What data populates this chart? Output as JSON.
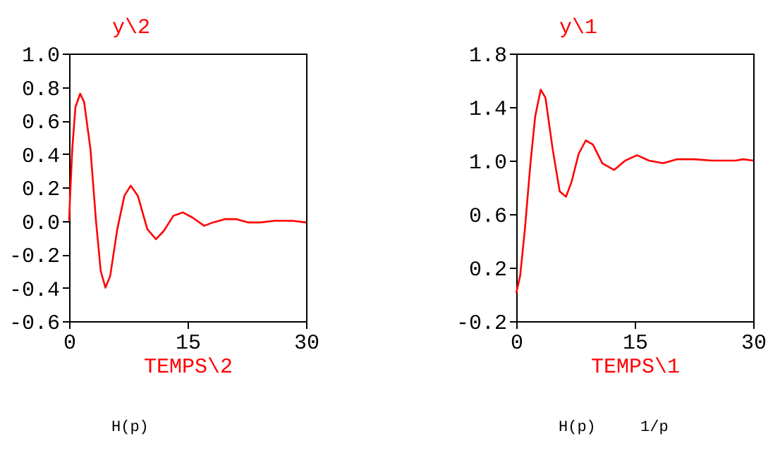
{
  "chart_data": [
    {
      "type": "line",
      "ylabel": "y\\2",
      "xlabel": "TEMPS\\2",
      "xlim": [
        0,
        30
      ],
      "xticks": [
        0,
        15,
        30
      ],
      "ylim": [
        -0.6,
        1.0
      ],
      "yticks": [
        {
          "value": -0.6,
          "label": "-0.6"
        },
        {
          "value": -0.4,
          "label": "-0.4"
        },
        {
          "value": -0.2,
          "label": "-0.2"
        },
        {
          "value": 0,
          "label": "0.0"
        },
        {
          "value": 0.2,
          "label": "0.2"
        },
        {
          "value": 0.4,
          "label": "0.4"
        },
        {
          "value": 0.6,
          "label": "0.6"
        },
        {
          "value": 0.8,
          "label": "0.8"
        },
        {
          "value": 1,
          "label": "1.0"
        }
      ],
      "grid": false,
      "series": [
        {
          "color": "#ff0000",
          "x": [
            0,
            0.1,
            0.4,
            0.8,
            1.4,
            1.9,
            2.7,
            3.4,
            4.0,
            4.6,
            5.2,
            6.1,
            7.0,
            7.8,
            8.7,
            9.9,
            11.0,
            12.0,
            13.2,
            14.4,
            15.6,
            17.1,
            18.2,
            19.7,
            21.2,
            22.7,
            24.2,
            26.0,
            28.3,
            30
          ],
          "values": [
            0,
            0.12,
            0.43,
            0.68,
            0.76,
            0.71,
            0.43,
            0.0,
            -0.3,
            -0.4,
            -0.33,
            -0.05,
            0.15,
            0.21,
            0.15,
            -0.05,
            -0.11,
            -0.06,
            0.03,
            0.05,
            0.02,
            -0.03,
            -0.01,
            0.01,
            0.01,
            -0.01,
            -0.01,
            0.0,
            0.0,
            -0.01
          ]
        }
      ],
      "annotations": [
        "H(p)"
      ]
    },
    {
      "type": "line",
      "ylabel": "y\\1",
      "xlabel": "TEMPS\\1",
      "xlim": [
        0,
        30
      ],
      "xticks": [
        0,
        15,
        30
      ],
      "ylim": [
        -0.2,
        1.8
      ],
      "yticks": [
        {
          "value": -0.2,
          "label": "-0.2"
        },
        0.2,
        0.6,
        {
          "value": 1,
          "label": "1.0"
        },
        1.4,
        1.8
      ],
      "grid": false,
      "series": [
        {
          "color": "#ff0000",
          "x": [
            0,
            0.5,
            1.1,
            1.8,
            2.4,
            3.1,
            3.7,
            4.6,
            5.5,
            6.3,
            7.0,
            7.9,
            8.8,
            9.7,
            10.9,
            12.4,
            13.8,
            15.3,
            16.8,
            18.6,
            20.4,
            22.5,
            24.8,
            27.8,
            28.7,
            30
          ],
          "values": [
            0.01,
            0.14,
            0.49,
            0.98,
            1.33,
            1.53,
            1.47,
            1.09,
            0.77,
            0.73,
            0.84,
            1.05,
            1.15,
            1.12,
            0.98,
            0.93,
            1.0,
            1.04,
            1.0,
            0.98,
            1.01,
            1.01,
            1.0,
            1.0,
            1.01,
            1.0
          ]
        }
      ],
      "annotations": [
        "H(p)",
        "1/p"
      ]
    }
  ]
}
